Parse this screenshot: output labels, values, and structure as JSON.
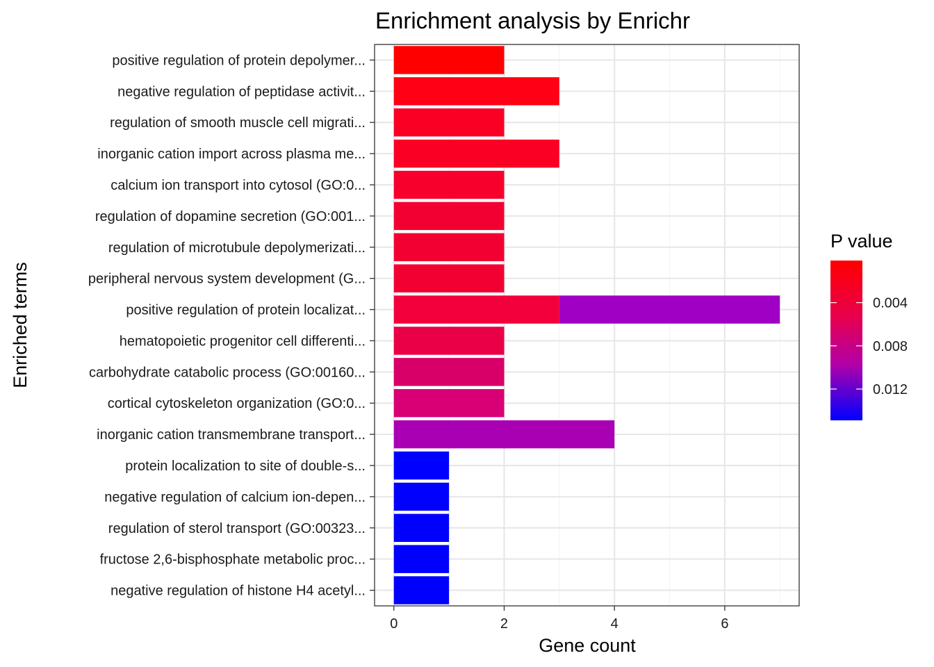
{
  "chart_data": {
    "type": "bar",
    "orientation": "horizontal",
    "stacked": true,
    "title": "Enrichment analysis by Enrichr",
    "xlabel": "Gene count",
    "ylabel": "Enriched terms",
    "xlim": [
      -0.35,
      7.35
    ],
    "x_ticks": [
      0,
      2,
      4,
      6
    ],
    "grid": true,
    "categories": [
      "positive regulation of protein depolymer...",
      "negative regulation of peptidase activit...",
      "regulation of smooth muscle cell migrati...",
      "inorganic cation import across plasma me...",
      "calcium ion transport into cytosol (GO:0...",
      "regulation of dopamine secretion (GO:001...",
      "regulation of microtubule depolymerizati...",
      "peripheral nervous system development (G...",
      "positive regulation of protein localizat...",
      "hematopoietic progenitor cell differenti...",
      "carbohydrate catabolic process (GO:00160...",
      "cortical cytoskeleton organization (GO:0...",
      "inorganic cation transmembrane transport...",
      "protein localization to site of double-s...",
      "negative regulation of calcium ion-depen...",
      "regulation of sterol transport (GO:00323...",
      "fructose 2,6-bisphosphate metabolic proc...",
      "negative regulation of histone H4 acetyl..."
    ],
    "segments": [
      {
        "term_index": 0,
        "start": 0,
        "count": 2,
        "color": "#FF0000"
      },
      {
        "term_index": 1,
        "start": 0,
        "count": 3,
        "color": "#FF0014"
      },
      {
        "term_index": 2,
        "start": 0,
        "count": 2,
        "color": "#FA0024"
      },
      {
        "term_index": 3,
        "start": 0,
        "count": 3,
        "color": "#FA0024"
      },
      {
        "term_index": 4,
        "start": 0,
        "count": 2,
        "color": "#F7002B"
      },
      {
        "term_index": 5,
        "start": 0,
        "count": 2,
        "color": "#F30033"
      },
      {
        "term_index": 6,
        "start": 0,
        "count": 2,
        "color": "#F30033"
      },
      {
        "term_index": 7,
        "start": 0,
        "count": 2,
        "color": "#F30033"
      },
      {
        "term_index": 8,
        "start": 0,
        "count": 3,
        "color": "#F3003C"
      },
      {
        "term_index": 8,
        "start": 3,
        "count": 4,
        "color": "#9F00C3"
      },
      {
        "term_index": 9,
        "start": 0,
        "count": 2,
        "color": "#EA0047"
      },
      {
        "term_index": 10,
        "start": 0,
        "count": 2,
        "color": "#D80068"
      },
      {
        "term_index": 11,
        "start": 0,
        "count": 2,
        "color": "#D80074"
      },
      {
        "term_index": 12,
        "start": 0,
        "count": 4,
        "color": "#AA00B4"
      },
      {
        "term_index": 13,
        "start": 0,
        "count": 1,
        "color": "#0000FF"
      },
      {
        "term_index": 14,
        "start": 0,
        "count": 1,
        "color": "#0000FF"
      },
      {
        "term_index": 15,
        "start": 0,
        "count": 1,
        "color": "#0000FF"
      },
      {
        "term_index": 16,
        "start": 0,
        "count": 1,
        "color": "#0000FF"
      },
      {
        "term_index": 17,
        "start": 0,
        "count": 1,
        "color": "#0000FF"
      }
    ],
    "legend": {
      "title": "P value",
      "position": "right",
      "gradient_top_color": "#FF0000",
      "gradient_bottom_color": "#0000FF",
      "range": [
        0.0001,
        0.0149
      ],
      "ticks": [
        0.004,
        0.008,
        0.012
      ],
      "tick_labels": [
        "0.004",
        "0.008",
        "0.012"
      ]
    }
  }
}
